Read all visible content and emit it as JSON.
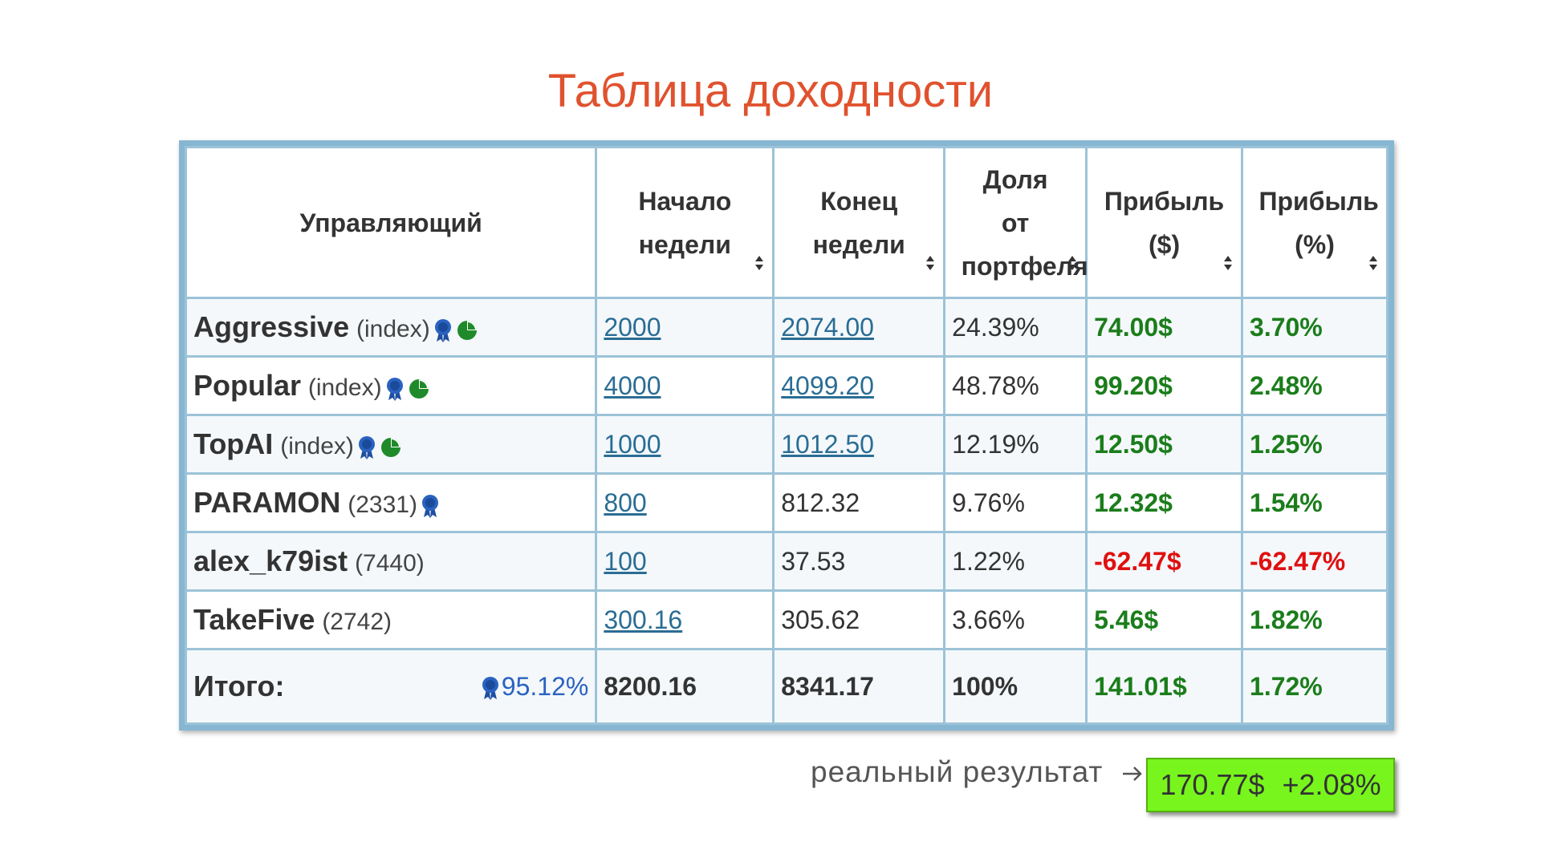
{
  "title": "Таблица доходности",
  "table": {
    "headers": [
      "Управляющий",
      "Начало недели",
      "Конец недели",
      "Доля от портфеля",
      "Прибыль ($)",
      "Прибыль (%)"
    ],
    "rows": [
      {
        "name": "Aggressive",
        "tag": "(index)",
        "start": "2000",
        "end": "2074.00",
        "share": "24.39%",
        "profit_usd": "74.00$",
        "profit_pct": "3.70%"
      },
      {
        "name": "Popular",
        "tag": "(index)",
        "start": "4000",
        "end": "4099.20",
        "share": "48.78%",
        "profit_usd": "99.20$",
        "profit_pct": "2.48%"
      },
      {
        "name": "TopAI",
        "tag": "(index)",
        "start": "1000",
        "end": "1012.50",
        "share": "12.19%",
        "profit_usd": "12.50$",
        "profit_pct": "1.25%"
      },
      {
        "name": "PARAMON",
        "tag": "(2331)",
        "start": "800",
        "end": "812.32",
        "share": "9.76%",
        "profit_usd": "12.32$",
        "profit_pct": "1.54%"
      },
      {
        "name": "alex_k79ist",
        "tag": "(7440)",
        "start": "100",
        "end": "37.53",
        "share": "1.22%",
        "profit_usd": "-62.47$",
        "profit_pct": "-62.47%"
      },
      {
        "name": "TakeFive",
        "tag": "(2742)",
        "start": "300.16",
        "end": "305.62",
        "share": "3.66%",
        "profit_usd": "5.46$",
        "profit_pct": "1.82%"
      }
    ],
    "total": {
      "label": "Итого:",
      "index_share": "95.12%",
      "start": "8200.16",
      "end": "8341.17",
      "share": "100%",
      "profit_usd": "141.01$",
      "profit_pct": "1.72%"
    }
  },
  "note": "реальный результат",
  "result": {
    "usd": "170.77$",
    "pct": "+2.08%"
  }
}
